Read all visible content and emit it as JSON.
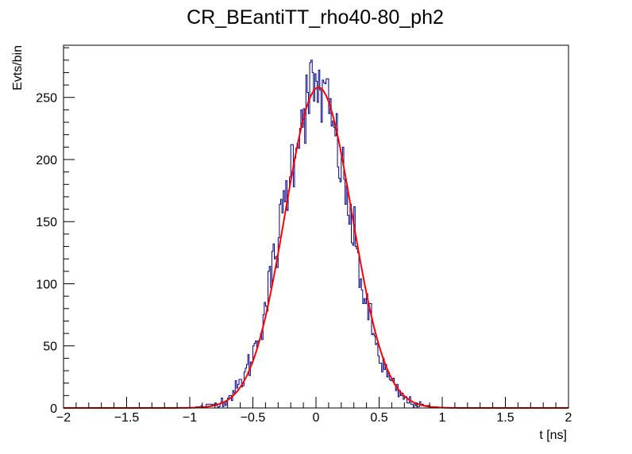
{
  "chart_data": {
    "type": "line",
    "title": "CR_BEantiTT_rho40-80_ph2",
    "xlabel": "t [ns]",
    "ylabel": "Evts/bin",
    "xlim": [
      -2,
      2
    ],
    "ylim": [
      0,
      292
    ],
    "x_ticks": [
      -2,
      -1.5,
      -1,
      -0.5,
      0,
      0.5,
      1,
      1.5,
      2
    ],
    "x_tick_labels": [
      "−2",
      "−1.5",
      "−1",
      "−0.5",
      "0",
      "0.5",
      "1",
      "1.5",
      "2"
    ],
    "y_ticks": [
      0,
      50,
      100,
      150,
      200,
      250
    ],
    "y_tick_labels": [
      "0",
      "50",
      "100",
      "150",
      "200",
      "250"
    ],
    "grid": false,
    "legend": "none",
    "series": [
      {
        "kind": "histogram",
        "color": "#000080",
        "bin_width": 0.01,
        "x_start": -2.0,
        "approximate_shape": {
          "peak_x": 0.0,
          "peak_y": 258,
          "sigma": 0.265
        }
      },
      {
        "kind": "fit",
        "color": "#ff0000",
        "function": "gaussian",
        "amplitude": 258,
        "mean": 0.02,
        "sigma": 0.265
      }
    ]
  }
}
